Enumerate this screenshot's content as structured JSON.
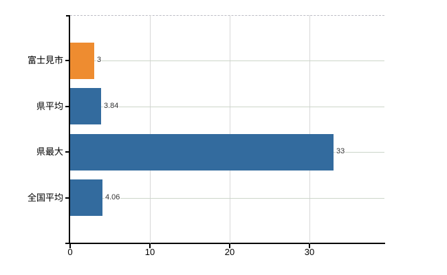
{
  "chart_data": {
    "type": "bar",
    "orientation": "horizontal",
    "title": "",
    "categories": [
      "富士見市",
      "県平均",
      "県最大",
      "全国平均"
    ],
    "values": [
      3,
      3.84,
      33,
      4.06
    ],
    "value_labels": [
      "3",
      "3.84",
      "33",
      "4.06"
    ],
    "bar_colors": [
      "#ee8c30",
      "#336b9e",
      "#336b9e",
      "#336b9e"
    ],
    "x_tick_values": [
      0,
      10,
      20,
      30
    ],
    "x_tick_labels": [
      "0",
      "10",
      "20",
      "30"
    ],
    "xlim": [
      0,
      39.4
    ],
    "grid": true,
    "legend": false
  },
  "colors": {
    "background": "#ffffff",
    "bar_highlight": "#ee8c30",
    "bar_default": "#336b9e",
    "axis": "#000000",
    "h_gridline": "#ccd5c9",
    "v_gridline": "#d8d8d8",
    "plot_top_border": "#bcbcc4",
    "value_label_text": "#333333"
  }
}
